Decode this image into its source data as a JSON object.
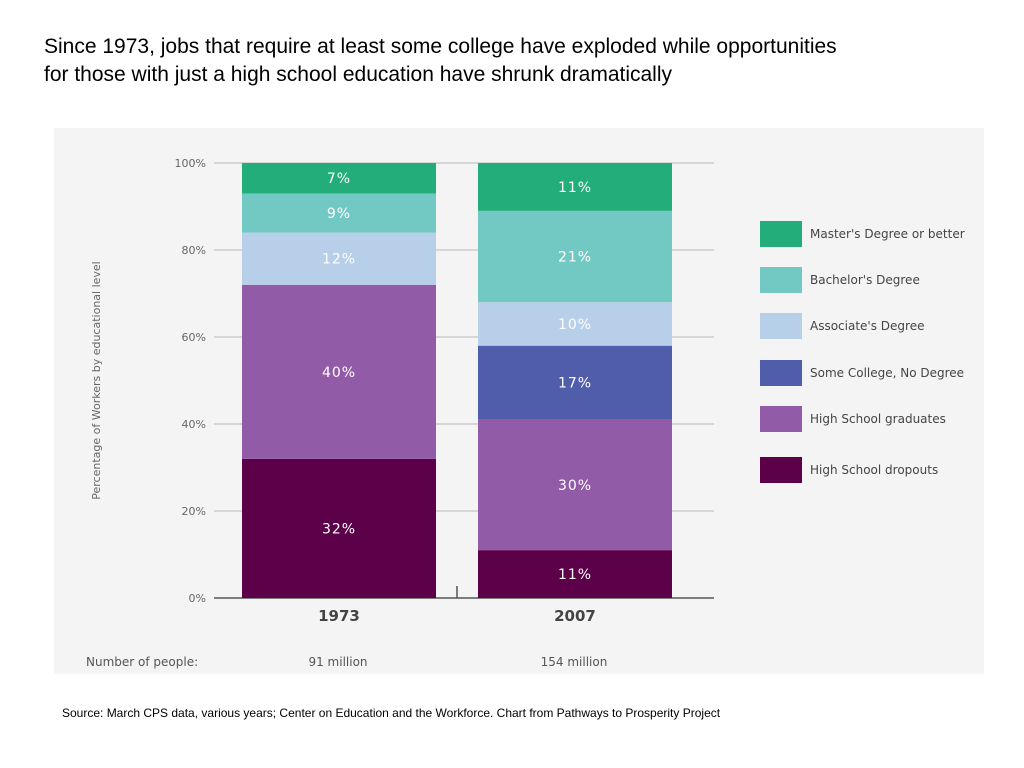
{
  "slide": {
    "title_line1": "Since 1973, jobs that require at least some college have exploded while opportunities",
    "title_line2": "for those with just a high school education have shrunk dramatically",
    "source": "Source: March CPS data, various years; Center on Education and the Workforce. Chart from Pathways to Prosperity Project"
  },
  "chart_data": {
    "type": "bar",
    "stacked": true,
    "ylabel": "Percentage of Workers by educational level",
    "xlabel": "",
    "ylim": [
      0,
      100
    ],
    "yticks": [
      "0%",
      "20%",
      "40%",
      "60%",
      "80%",
      "100%"
    ],
    "categories": [
      "1973",
      "2007"
    ],
    "series": [
      {
        "name": "High School dropouts",
        "color": "#5b0049",
        "values": [
          32,
          11
        ],
        "labels": [
          "32%",
          "11%"
        ]
      },
      {
        "name": "High School graduates",
        "color": "#925ba8",
        "values": [
          40,
          30
        ],
        "labels": [
          "40%",
          "30%"
        ]
      },
      {
        "name": "Some College, No Degree",
        "color": "#4f5dab",
        "values": [
          0,
          17
        ],
        "labels": [
          "",
          "17%"
        ]
      },
      {
        "name": "Associate's Degree",
        "color": "#b8cfe9",
        "values": [
          12,
          10
        ],
        "labels": [
          "12%",
          "10%"
        ]
      },
      {
        "name": "Bachelor's Degree",
        "color": "#72c9c3",
        "values": [
          9,
          21
        ],
        "labels": [
          "9%",
          "21%"
        ]
      },
      {
        "name": "Master's Degree or better",
        "color": "#22ad7b",
        "values": [
          7,
          11
        ],
        "labels": [
          "7%",
          "11%"
        ]
      }
    ],
    "legend_position": "right",
    "legend_order": [
      "Master's Degree or better",
      "Bachelor's Degree",
      "Associate's Degree",
      "Some College, No Degree",
      "High School graduates",
      "High School dropouts"
    ],
    "people": {
      "label": "Number of people:",
      "values": [
        "91 million",
        "154 million"
      ]
    },
    "grid": true
  }
}
